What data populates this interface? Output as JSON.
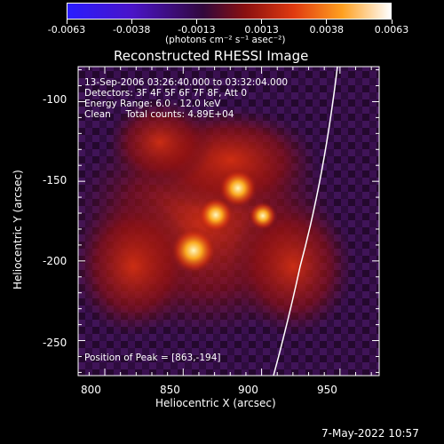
{
  "colorbar": {
    "tick_labels": [
      "-0.0063",
      "-0.0038",
      "-0.0013",
      "0.0013",
      "0.0038",
      "0.0063"
    ],
    "unit_label": "(photons cm⁻² s⁻¹ asec⁻²)",
    "colors": [
      "#2a1cff",
      "#5a1ab0",
      "#3a0a40",
      "#8a1010",
      "#e04010",
      "#ffb030",
      "#ffffff"
    ]
  },
  "plot": {
    "title": "Reconstructed RHESSI Image",
    "xlabel": "Heliocentric X (arcsec)",
    "ylabel": "Heliocentric Y (arcsec)",
    "x_ticks": [
      "800",
      "850",
      "900",
      "950"
    ],
    "y_ticks": [
      "-100",
      "-150",
      "-200",
      "-250"
    ],
    "xlim": [
      783,
      975
    ],
    "ylim": [
      -272,
      -78
    ],
    "annotations": [
      "13-Sep-2006 03:26:40.000 to 03:32:04.000",
      "Detectors: 3F 4F 5F 6F 7F 8F, Att 0",
      "Energy Range: 6.0 - 12.0 keV",
      "Clean     Total counts: 4.89E+04"
    ],
    "peak_label": "Position of Peak = [863,-194]",
    "peak_position": [
      863,
      -194
    ],
    "limb_color": "#ffffff"
  },
  "footer": {
    "timestamp": "7-May-2022 10:57"
  }
}
